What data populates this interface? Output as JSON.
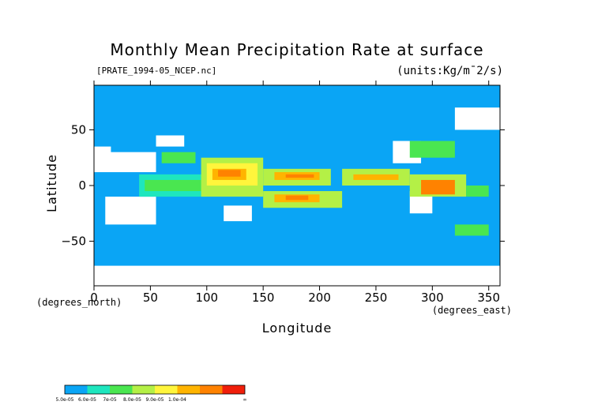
{
  "chart_data": {
    "type": "heatmap",
    "title": "Monthly Mean Precipitation Rate at surface",
    "subtitle": "[PRATE_1994-05_NCEP.nc]",
    "units": "(units:Kg/m¯2/s)",
    "xlabel": "Longitude",
    "ylabel": "Latitude",
    "x_unit_label": "(degrees_east)",
    "y_unit_label": "(degrees_north)",
    "xlim": [
      0,
      360
    ],
    "ylim": [
      -90,
      90
    ],
    "x_ticks": [
      0,
      50,
      100,
      150,
      200,
      250,
      300,
      350
    ],
    "y_ticks": [
      -50,
      0,
      50
    ],
    "x_tick_labels": [
      "0",
      "50",
      "100",
      "150",
      "200",
      "250",
      "300",
      "350"
    ],
    "y_tick_labels": [
      "−50",
      "0",
      "50"
    ],
    "background_color": "#0aa5f5",
    "missing_color": "#ffffff",
    "colorbar": {
      "colors": [
        "#0aa5f5",
        "#1ee6be",
        "#4ae650",
        "#b4f046",
        "#fff53c",
        "#ffb400",
        "#ff8200",
        "#f01e0a"
      ],
      "tick_labels": [
        "5.0e-05",
        "6.0e-05",
        "7e-05",
        "8.0e-05",
        "9.0e-05",
        "1.0e-04",
        "∞"
      ],
      "tick_positions": [
        0,
        1,
        2,
        3,
        4,
        5,
        6,
        7,
        8
      ],
      "tick_label_slots": [
        0,
        1,
        2,
        3,
        4,
        5,
        8
      ]
    },
    "regions": [
      {
        "level": "missing",
        "lon": [
          10,
          55
        ],
        "lat": [
          -35,
          -10
        ]
      },
      {
        "level": "missing",
        "lon": [
          0,
          55
        ],
        "lat": [
          12,
          30
        ]
      },
      {
        "level": "missing",
        "lon": [
          55,
          80
        ],
        "lat": [
          35,
          45
        ]
      },
      {
        "level": "missing",
        "lon": [
          115,
          140
        ],
        "lat": [
          -32,
          -18
        ]
      },
      {
        "level": "missing",
        "lon": [
          265,
          290
        ],
        "lat": [
          20,
          40
        ]
      },
      {
        "level": "missing",
        "lon": [
          280,
          300
        ],
        "lat": [
          -25,
          -5
        ]
      },
      {
        "level": "missing",
        "lon": [
          0,
          360
        ],
        "lat": [
          -90,
          -72
        ]
      },
      {
        "level": "missing",
        "lon": [
          320,
          360
        ],
        "lat": [
          50,
          70
        ]
      },
      {
        "level": "missing",
        "lon": [
          0,
          15
        ],
        "lat": [
          28,
          35
        ]
      },
      {
        "level": 1,
        "lon": [
          40,
          100
        ],
        "lat": [
          -10,
          10
        ]
      },
      {
        "level": 2,
        "lon": [
          45,
          95
        ],
        "lat": [
          -5,
          5
        ]
      },
      {
        "level": 3,
        "lon": [
          95,
          150
        ],
        "lat": [
          -10,
          25
        ]
      },
      {
        "level": 4,
        "lon": [
          100,
          145
        ],
        "lat": [
          0,
          20
        ]
      },
      {
        "level": 5,
        "lon": [
          105,
          135
        ],
        "lat": [
          5,
          15
        ]
      },
      {
        "level": 6,
        "lon": [
          110,
          130
        ],
        "lat": [
          8,
          14
        ]
      },
      {
        "level": 3,
        "lon": [
          150,
          210
        ],
        "lat": [
          0,
          15
        ]
      },
      {
        "level": 5,
        "lon": [
          160,
          200
        ],
        "lat": [
          5,
          12
        ]
      },
      {
        "level": 6,
        "lon": [
          170,
          195
        ],
        "lat": [
          7,
          10
        ]
      },
      {
        "level": 3,
        "lon": [
          150,
          220
        ],
        "lat": [
          -20,
          -5
        ]
      },
      {
        "level": 5,
        "lon": [
          160,
          200
        ],
        "lat": [
          -15,
          -8
        ]
      },
      {
        "level": 6,
        "lon": [
          170,
          190
        ],
        "lat": [
          -13,
          -9
        ]
      },
      {
        "level": 3,
        "lon": [
          220,
          280
        ],
        "lat": [
          0,
          15
        ]
      },
      {
        "level": 5,
        "lon": [
          230,
          270
        ],
        "lat": [
          5,
          10
        ]
      },
      {
        "level": 3,
        "lon": [
          280,
          330
        ],
        "lat": [
          -10,
          10
        ]
      },
      {
        "level": 6,
        "lon": [
          290,
          320
        ],
        "lat": [
          -8,
          5
        ]
      },
      {
        "level": 2,
        "lon": [
          60,
          90
        ],
        "lat": [
          20,
          30
        ]
      },
      {
        "level": 2,
        "lon": [
          280,
          320
        ],
        "lat": [
          25,
          40
        ]
      },
      {
        "level": 2,
        "lon": [
          320,
          350
        ],
        "lat": [
          -45,
          -35
        ]
      },
      {
        "level": 2,
        "lon": [
          330,
          350
        ],
        "lat": [
          -10,
          0
        ]
      }
    ]
  }
}
